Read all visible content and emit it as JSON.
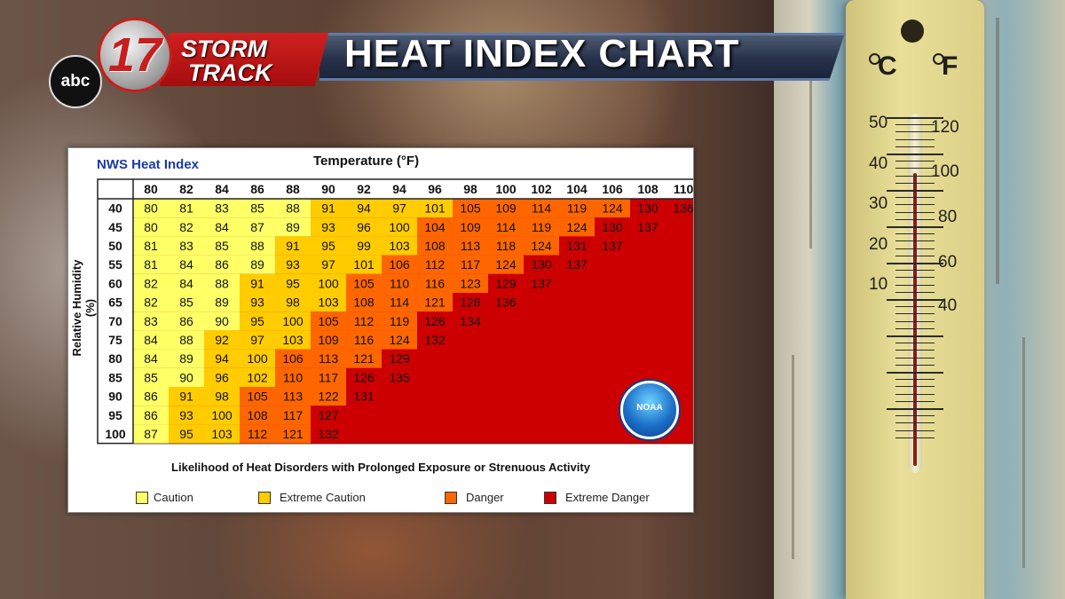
{
  "banner": {
    "network": "abc",
    "channel": "17",
    "brand_line1": "STORM",
    "brand_line2": "TRACK",
    "title": "HEAT INDEX CHART"
  },
  "thermometer": {
    "celsius_unit": "C",
    "fahrenheit_unit": "F",
    "celsius_labels": [
      "50",
      "40",
      "30",
      "20",
      "10"
    ],
    "fahrenheit_labels": [
      "120",
      "100",
      "80",
      "60",
      "40"
    ]
  },
  "chart_data": {
    "type": "heatmap",
    "source_label": "NWS Heat Index",
    "title": "Temperature (°F)",
    "xlabel": "Temperature (°F)",
    "ylabel": "Relative Humidity (%)",
    "footer": "Likelihood of Heat Disorders with Prolonged Exposure or Strenuous Activity",
    "logo_text": "NOAA",
    "x": [
      80,
      82,
      84,
      86,
      88,
      90,
      92,
      94,
      96,
      98,
      100,
      102,
      104,
      106,
      108,
      110
    ],
    "y": [
      40,
      45,
      50,
      55,
      60,
      65,
      70,
      75,
      80,
      85,
      90,
      95,
      100
    ],
    "values": [
      [
        80,
        81,
        83,
        85,
        88,
        91,
        94,
        97,
        101,
        105,
        109,
        114,
        119,
        124,
        130,
        136
      ],
      [
        80,
        82,
        84,
        87,
        89,
        93,
        96,
        100,
        104,
        109,
        114,
        119,
        124,
        130,
        137,
        null
      ],
      [
        81,
        83,
        85,
        88,
        91,
        95,
        99,
        103,
        108,
        113,
        118,
        124,
        131,
        137,
        null,
        null
      ],
      [
        81,
        84,
        86,
        89,
        93,
        97,
        101,
        106,
        112,
        117,
        124,
        130,
        137,
        null,
        null,
        null
      ],
      [
        82,
        84,
        88,
        91,
        95,
        100,
        105,
        110,
        116,
        123,
        129,
        137,
        null,
        null,
        null,
        null
      ],
      [
        82,
        85,
        89,
        93,
        98,
        103,
        108,
        114,
        121,
        128,
        136,
        null,
        null,
        null,
        null,
        null
      ],
      [
        83,
        86,
        90,
        95,
        100,
        105,
        112,
        119,
        126,
        134,
        null,
        null,
        null,
        null,
        null,
        null
      ],
      [
        84,
        88,
        92,
        97,
        103,
        109,
        116,
        124,
        132,
        null,
        null,
        null,
        null,
        null,
        null,
        null
      ],
      [
        84,
        89,
        94,
        100,
        106,
        113,
        121,
        129,
        null,
        null,
        null,
        null,
        null,
        null,
        null,
        null
      ],
      [
        85,
        90,
        96,
        102,
        110,
        117,
        126,
        135,
        null,
        null,
        null,
        null,
        null,
        null,
        null,
        null
      ],
      [
        86,
        91,
        98,
        105,
        113,
        122,
        131,
        null,
        null,
        null,
        null,
        null,
        null,
        null,
        null,
        null
      ],
      [
        86,
        93,
        100,
        108,
        117,
        127,
        null,
        null,
        null,
        null,
        null,
        null,
        null,
        null,
        null,
        null
      ],
      [
        87,
        95,
        103,
        112,
        121,
        132,
        null,
        null,
        null,
        null,
        null,
        null,
        null,
        null,
        null,
        null
      ]
    ],
    "categories_legend": [
      {
        "name": "Caution",
        "color": "#ffff66",
        "min": 80,
        "max": 90
      },
      {
        "name": "Extreme Caution",
        "color": "#ffcc00",
        "min": 91,
        "max": 103
      },
      {
        "name": "Danger",
        "color": "#ff6600",
        "min": 104,
        "max": 124
      },
      {
        "name": "Extreme Danger",
        "color": "#cc0000",
        "min": 125,
        "max": 999
      }
    ]
  }
}
